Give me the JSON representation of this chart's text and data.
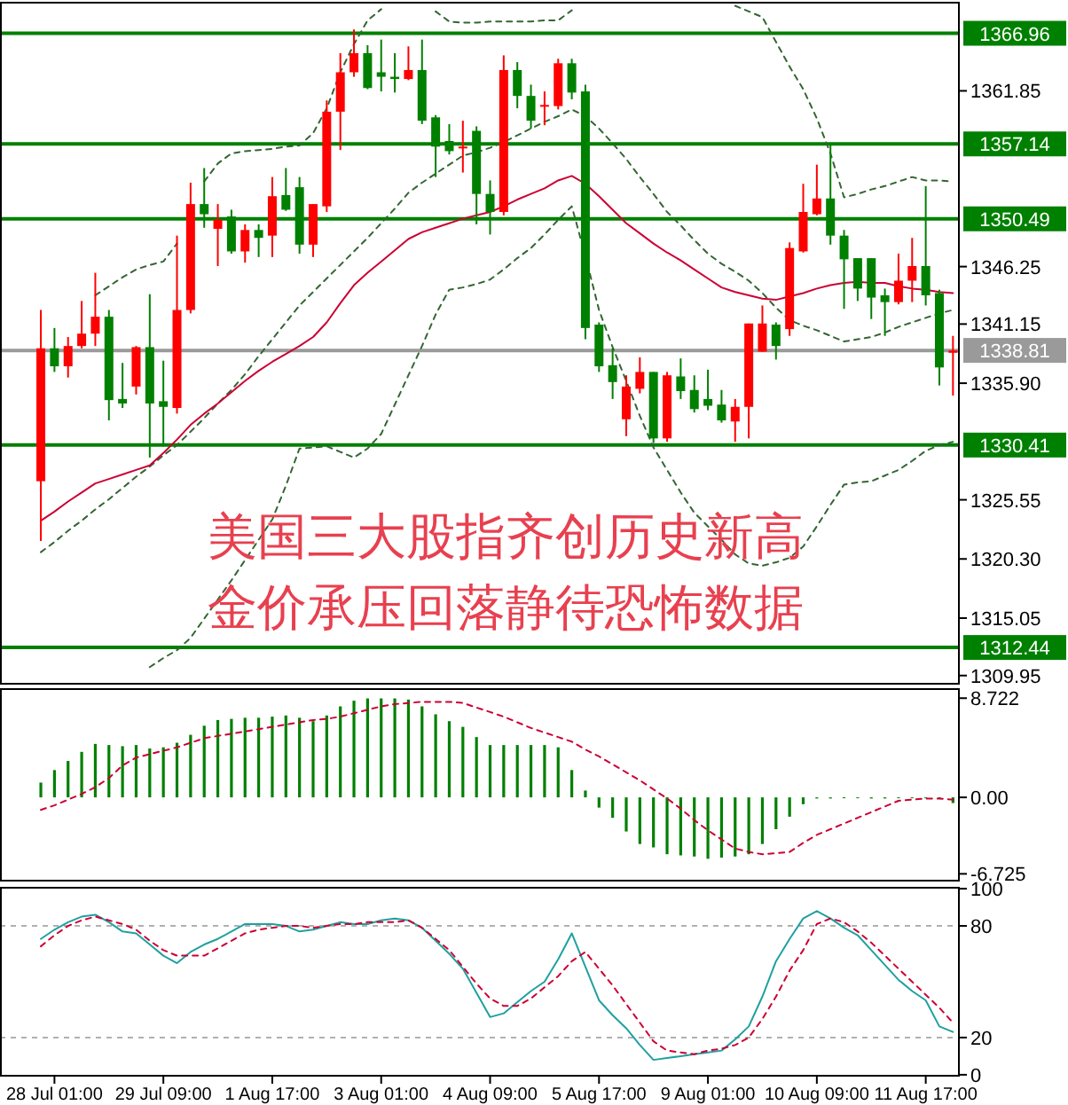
{
  "chart_data": [
    {
      "type": "candlestick",
      "tick_labels": "y",
      "categories": [
        null,
        null,
        null,
        null,
        null,
        null,
        null,
        null,
        null,
        null,
        null,
        null,
        null,
        null,
        null,
        null,
        null,
        null,
        null,
        null,
        null,
        null,
        null,
        null,
        null,
        null,
        null,
        null,
        null,
        null,
        null,
        null,
        null,
        null,
        null,
        null,
        null,
        null,
        null,
        null,
        null,
        null,
        null,
        null,
        null,
        null,
        null,
        null,
        null,
        null,
        null,
        null,
        null,
        null,
        null,
        null,
        null,
        null,
        null,
        null,
        null,
        null,
        null,
        null,
        null,
        null,
        null,
        null
      ],
      "ohlc": [
        [
          1327.2,
          1342.4,
          1321.9,
          1339.0
        ],
        [
          1339.0,
          1340.8,
          1336.9,
          1337.4
        ],
        [
          1337.4,
          1340.0,
          1336.4,
          1339.2
        ],
        [
          1339.2,
          1343.2,
          1339.0,
          1340.3
        ],
        [
          1340.3,
          1345.7,
          1339.2,
          1341.8
        ],
        [
          1341.8,
          1342.4,
          1332.6,
          1334.4
        ],
        [
          1334.5,
          1337.7,
          1333.7,
          1334.1
        ],
        [
          1335.6,
          1339.2,
          1334.9,
          1339.1
        ],
        [
          1339.1,
          1343.8,
          1329.3,
          1334.1
        ],
        [
          1334.3,
          1337.9,
          1330.3,
          1333.8
        ],
        [
          1333.7,
          1349.0,
          1333.2,
          1342.4
        ],
        [
          1342.4,
          1353.7,
          1342.1,
          1351.8
        ],
        [
          1351.8,
          1355.0,
          1349.7,
          1350.9
        ],
        [
          1349.6,
          1351.8,
          1346.3,
          1350.4
        ],
        [
          1350.7,
          1351.3,
          1347.4,
          1347.6
        ],
        [
          1347.6,
          1350.0,
          1346.6,
          1349.5
        ],
        [
          1349.5,
          1350.0,
          1347.1,
          1348.8
        ],
        [
          1349.0,
          1354.2,
          1347.1,
          1352.5
        ],
        [
          1352.6,
          1355.0,
          1351.2,
          1351.3
        ],
        [
          1353.3,
          1354.2,
          1347.4,
          1348.2
        ],
        [
          1348.2,
          1351.8,
          1347.1,
          1351.8
        ],
        [
          1351.6,
          1361.0,
          1351.1,
          1360.0
        ],
        [
          1360.0,
          1365.2,
          1356.6,
          1363.5
        ],
        [
          1363.5,
          1367.3,
          1363.1,
          1365.2
        ],
        [
          1365.2,
          1365.9,
          1362.0,
          1362.1
        ],
        [
          1363.5,
          1366.4,
          1361.8,
          1363.1
        ],
        [
          1363.1,
          1365.2,
          1361.7,
          1362.9
        ],
        [
          1362.9,
          1365.8,
          1362.8,
          1363.7
        ],
        [
          1363.7,
          1366.4,
          1358.9,
          1359.2
        ],
        [
          1359.5,
          1359.7,
          1354.2,
          1356.9
        ],
        [
          1357.4,
          1358.9,
          1356.2,
          1356.5
        ],
        [
          1356.8,
          1359.2,
          1354.6,
          1356.9
        ],
        [
          1358.3,
          1358.7,
          1350.0,
          1352.7
        ],
        [
          1352.7,
          1353.9,
          1349.1,
          1351.1
        ],
        [
          1351.1,
          1365.0,
          1350.8,
          1363.7
        ],
        [
          1363.7,
          1364.4,
          1360.3,
          1361.4
        ],
        [
          1361.4,
          1362.4,
          1358.5,
          1359.2
        ],
        [
          1360.5,
          1361.8,
          1358.8,
          1360.6
        ],
        [
          1360.5,
          1364.7,
          1360.2,
          1364.3
        ],
        [
          1364.3,
          1364.7,
          1361.1,
          1361.7
        ],
        [
          1361.8,
          1362.4,
          1339.8,
          1340.8
        ],
        [
          1341.1,
          1341.3,
          1336.9,
          1337.4
        ],
        [
          1337.5,
          1339.0,
          1334.5,
          1336.0
        ],
        [
          1332.7,
          1336.6,
          1331.2,
          1335.6
        ],
        [
          1335.4,
          1338.2,
          1335.0,
          1336.9
        ],
        [
          1336.9,
          1336.9,
          1330.6,
          1331.0
        ],
        [
          1331.0,
          1336.9,
          1330.7,
          1336.6
        ],
        [
          1336.5,
          1338.1,
          1334.5,
          1335.2
        ],
        [
          1335.3,
          1336.6,
          1333.3,
          1333.6
        ],
        [
          1334.5,
          1337.1,
          1333.5,
          1333.9
        ],
        [
          1334.0,
          1335.3,
          1332.4,
          1332.6
        ],
        [
          1332.5,
          1334.5,
          1330.7,
          1333.8
        ],
        [
          1333.8,
          1341.2,
          1331.0,
          1341.2
        ],
        [
          1338.7,
          1342.8,
          1338.7,
          1341.2
        ],
        [
          1341.1,
          1341.3,
          1338.0,
          1339.2
        ],
        [
          1340.7,
          1348.4,
          1340.1,
          1347.9
        ],
        [
          1347.6,
          1353.6,
          1347.5,
          1351.1
        ],
        [
          1350.9,
          1355.3,
          1350.8,
          1352.3
        ],
        [
          1352.3,
          1357.1,
          1348.2,
          1349.0
        ],
        [
          1349.0,
          1349.5,
          1342.5,
          1346.9
        ],
        [
          1347.0,
          1347.0,
          1343.2,
          1344.3
        ],
        [
          1347.0,
          1347.0,
          1341.6,
          1343.5
        ],
        [
          1343.7,
          1344.3,
          1340.1,
          1343.1
        ],
        [
          1343.1,
          1347.4,
          1342.9,
          1345.0
        ],
        [
          1345.0,
          1348.8,
          1343.1,
          1346.3
        ],
        [
          1346.3,
          1353.4,
          1342.8,
          1343.7
        ],
        [
          1343.9,
          1344.2,
          1335.7,
          1337.3
        ],
        [
          1338.6,
          1340.1,
          1334.8,
          1338.8
        ]
      ],
      "colors": [
        "#ff0000",
        "#008000",
        "#ff0000",
        "#ff0000",
        "#ff0000",
        "#008000",
        "#008000",
        "#ff0000",
        "#008000",
        "#008000",
        "#ff0000",
        "#ff0000",
        "#008000",
        "#ff0000",
        "#008000",
        "#ff0000",
        "#008000",
        "#ff0000",
        "#008000",
        "#008000",
        "#ff0000",
        "#ff0000",
        "#ff0000",
        "#ff0000",
        "#008000",
        "#008000",
        "#008000",
        "#ff0000",
        "#008000",
        "#008000",
        "#008000",
        "#ff0000",
        "#008000",
        "#008000",
        "#ff0000",
        "#008000",
        "#008000",
        "#ff0000",
        "#ff0000",
        "#008000",
        "#008000",
        "#008000",
        "#008000",
        "#ff0000",
        "#ff0000",
        "#008000",
        "#ff0000",
        "#008000",
        "#008000",
        "#008000",
        "#008000",
        "#ff0000",
        "#ff0000",
        "#ff0000",
        "#008000",
        "#ff0000",
        "#ff0000",
        "#ff0000",
        "#008000",
        "#008000",
        "#008000",
        "#008000",
        "#008000",
        "#ff0000",
        "#ff0000",
        "#008000",
        "#008000",
        "#ff0000"
      ],
      "series": [
        {
          "type": "line",
          "color": "#336633",
          "line_style": "dashed",
          "values": [
            null,
            null,
            null,
            null,
            1343.7,
            1344.5,
            1345.3,
            1346.0,
            1346.4,
            1346.7,
            1348.3,
            null,
            1353.8,
            1355.4,
            1356.3,
            1356.5,
            1356.6,
            1356.7,
            1356.9,
            1357.0,
            1358.1,
            1360.3,
            1363.5,
            1366.0,
            1368.1,
            1369.1,
            null,
            null,
            null,
            1368.9,
            1368.0,
            1367.9,
            1367.9,
            1368.0,
            1368.0,
            1368.0,
            1368.0,
            1368.1,
            1368.1,
            1369.0,
            null,
            null,
            null,
            null,
            null,
            null,
            null,
            null,
            null,
            null,
            null,
            1369.4,
            1368.9,
            1368.4,
            1366.2,
            1364.0,
            1362.0,
            1359.4,
            1356.3,
            1352.4,
            1352.7,
            1353.1,
            1353.4,
            1353.8,
            1354.2,
            1353.9,
            1353.9,
            1353.8
          ]
        },
        {
          "type": "line",
          "color": "#336633",
          "line_style": "dashed",
          "values": [
            1320.9,
            1321.8,
            1322.8,
            1323.7,
            1324.7,
            1325.6,
            1326.6,
            1327.6,
            1328.5,
            1329.5,
            1330.4,
            1331.6,
            1332.8,
            1334.1,
            1335.3,
            1336.7,
            1338.3,
            1339.8,
            1341.3,
            1342.8,
            1344.0,
            1345.2,
            1346.4,
            1347.6,
            1348.8,
            1350.1,
            1351.4,
            1352.8,
            1353.7,
            1354.5,
            1355.3,
            1356.1,
            1356.4,
            1356.8,
            1357.3,
            1357.9,
            1358.5,
            1359.1,
            1359.6,
            1360.2,
            1359.6,
            1358.5,
            1357.2,
            1355.8,
            1354.2,
            1352.7,
            1351.1,
            1349.9,
            1348.6,
            1347.4,
            1346.5,
            1345.8,
            1345.0,
            1343.9,
            1342.6,
            1341.5,
            1341.0,
            1340.6,
            1340.1,
            1339.6,
            1339.8,
            1340.0,
            1340.4,
            1340.9,
            1341.3,
            1341.7,
            1342.1,
            1342.4
          ]
        },
        {
          "type": "line",
          "color": "#cc0033",
          "line_style": "solid",
          "values": [
            1323.7,
            1324.5,
            1325.4,
            1326.2,
            1327.0,
            1327.4,
            1327.8,
            1328.2,
            1328.6,
            1329.7,
            1330.9,
            1332.2,
            1333.2,
            1334.1,
            1335.1,
            1336.1,
            1337.0,
            1337.8,
            1338.5,
            1339.2,
            1340.0,
            1341.3,
            1343.0,
            1344.6,
            1345.7,
            1346.7,
            1347.7,
            1348.7,
            1349.3,
            1349.7,
            1350.1,
            1350.5,
            1350.8,
            1351.1,
            1351.6,
            1352.2,
            1352.7,
            1353.2,
            1353.9,
            1354.3,
            1353.6,
            1352.5,
            1351.3,
            1350.1,
            1349.2,
            1348.3,
            1347.5,
            1346.8,
            1346.0,
            1345.2,
            1344.4,
            1344.0,
            1343.7,
            1343.4,
            1343.3,
            1343.6,
            1343.9,
            1344.3,
            1344.6,
            1344.8,
            1344.9,
            1344.8,
            1344.8,
            1344.5,
            1344.3,
            1344.2,
            1344.0,
            1343.9
          ]
        },
        {
          "type": "line",
          "color": "#336633",
          "line_style": "dashed",
          "values": [
            null,
            null,
            null,
            null,
            null,
            null,
            null,
            null,
            1310.7,
            1311.5,
            1312.2,
            1313.3,
            1315.0,
            1316.7,
            1318.4,
            1320.2,
            1322.0,
            1323.8,
            1326.8,
            1330.1,
            1330.2,
            1330.3,
            1329.8,
            1329.3,
            1330.1,
            1331.4,
            1334.0,
            1336.6,
            1339.2,
            1342.0,
            1344.2,
            1344.4,
            1344.7,
            1345.1,
            1346.0,
            1347.0,
            1347.9,
            1349.1,
            1350.4,
            1351.6,
            1347.2,
            1342.4,
            1339.1,
            1336.1,
            1333.0,
            1330.2,
            1328.2,
            1326.2,
            1324.4,
            1323.2,
            1322.0,
            1320.7,
            1319.9,
            1319.7,
            1320.0,
            1320.4,
            1321.4,
            1323.2,
            1325.1,
            1326.9,
            1327.1,
            1327.2,
            1327.7,
            1328.2,
            1329.0,
            1329.9,
            1330.4,
            1330.7
          ]
        }
      ],
      "ylim": [
        1309.3,
        1369.6
      ],
      "yticks": [
        1361.85,
        1346.25,
        1341.15,
        {
          "value": 1335.9,
          "label": "1335.90"
        },
        1325.55,
        {
          "value": 1320.3,
          "label": "1320.30"
        },
        1315.05,
        1309.95
      ],
      "ref_lines": [
        {
          "axis": "y",
          "value": 1366.96,
          "label": "1366.96",
          "color": "#008000",
          "line_style": "solid"
        },
        {
          "axis": "y",
          "value": 1357.14,
          "label": "1357.14",
          "color": "#008000",
          "line_style": "solid"
        },
        {
          "axis": "y",
          "value": 1350.49,
          "label": "1350.49",
          "color": "#008000",
          "line_style": "solid"
        },
        {
          "axis": "y",
          "value": 1338.81,
          "label": "1338.81",
          "color": "#9a9a9a",
          "line_style": "solid"
        },
        {
          "axis": "y",
          "value": 1330.41,
          "label": "1330.41",
          "color": "#008000",
          "line_style": "solid"
        },
        {
          "axis": "y",
          "value": 1312.44,
          "label": "1312.44",
          "color": "#008000",
          "line_style": "solid"
        }
      ],
      "annotations": [
        "美国三大股指齐创历史新高",
        "金价承压回落静待恐怖数据"
      ]
    },
    {
      "type": "bar",
      "tick_labels": "y",
      "categories": [
        null,
        null,
        null,
        null,
        null,
        null,
        null,
        null,
        null,
        null,
        null,
        null,
        null,
        null,
        null,
        null,
        null,
        null,
        null,
        null,
        null,
        null,
        null,
        null,
        null,
        null,
        null,
        null,
        null,
        null,
        null,
        null,
        null,
        null,
        null,
        null,
        null,
        null,
        null,
        null,
        null,
        null,
        null,
        null,
        null,
        null,
        null,
        null,
        null,
        null,
        null,
        null,
        null,
        null,
        null,
        null,
        null,
        null,
        null,
        null,
        null,
        null,
        null,
        null,
        null,
        null,
        null,
        null
      ],
      "series": [
        {
          "color": "#008000",
          "values": [
            1.3,
            2.4,
            3.2,
            4.0,
            4.7,
            4.6,
            4.5,
            4.6,
            4.3,
            4.4,
            4.8,
            5.5,
            6.3,
            6.8,
            6.9,
            7.0,
            7.0,
            7.1,
            7.2,
            7.0,
            6.7,
            7.2,
            8.0,
            8.5,
            8.7,
            8.7,
            8.7,
            8.6,
            8.0,
            7.3,
            6.7,
            6.2,
            5.3,
            4.6,
            4.6,
            4.6,
            4.6,
            4.6,
            4.4,
            2.4,
            0.6,
            -0.9,
            -1.8,
            -3.0,
            -4.1,
            -4.4,
            -5.0,
            -5.1,
            -5.2,
            -5.4,
            -5.3,
            -5.2,
            -5.0,
            -4.1,
            -2.8,
            -1.7,
            -0.6,
            -0.1,
            -0.1,
            0,
            0,
            -0.1,
            -0.1,
            0,
            0,
            0,
            0,
            -0.5
          ]
        },
        {
          "type": "line",
          "color": "#cc0033",
          "line_style": "dashed",
          "values": [
            -1.1,
            -0.7,
            -0.2,
            0.3,
            0.9,
            1.7,
            2.8,
            3.5,
            3.8,
            4.1,
            4.4,
            4.8,
            5.2,
            5.4,
            5.6,
            5.8,
            6.0,
            6.2,
            6.4,
            6.6,
            6.8,
            6.9,
            7.1,
            7.4,
            7.7,
            8.0,
            8.2,
            8.3,
            8.4,
            8.4,
            8.4,
            8.3,
            7.9,
            7.5,
            7.1,
            6.6,
            6.1,
            5.7,
            5.3,
            4.9,
            4.2,
            3.6,
            2.9,
            2.2,
            1.5,
            0.7,
            -0.1,
            -1.0,
            -2.0,
            -2.9,
            -3.7,
            -4.5,
            -4.8,
            -5.0,
            -4.9,
            -4.8,
            -4.0,
            -3.3,
            -2.8,
            -2.3,
            -1.8,
            -1.3,
            -0.8,
            -0.3,
            -0.2,
            -0.1,
            -0.1,
            -0.2
          ]
        }
      ],
      "ylim": [
        -7.4,
        9.6
      ],
      "yticks": [
        8.722,
        {
          "value": 0,
          "label": "0.00"
        },
        -6.725
      ]
    },
    {
      "type": "line",
      "categories": [
        null,
        "28 Jul 01:00",
        null,
        null,
        null,
        null,
        null,
        null,
        null,
        "29 Jul 09:00",
        null,
        null,
        null,
        null,
        null,
        null,
        null,
        "1 Aug 17:00",
        null,
        null,
        null,
        null,
        null,
        null,
        null,
        "3 Aug 01:00",
        null,
        null,
        null,
        null,
        null,
        null,
        null,
        "4 Aug 09:00",
        null,
        null,
        null,
        null,
        null,
        null,
        null,
        "5 Aug 17:00",
        null,
        null,
        null,
        null,
        null,
        null,
        null,
        "9 Aug 01:00",
        null,
        null,
        null,
        null,
        null,
        null,
        null,
        "10 Aug 09:00",
        null,
        null,
        null,
        null,
        null,
        null,
        null,
        "11 Aug 17:00",
        null,
        null
      ],
      "series": [
        {
          "color": "#20a0a0",
          "line_style": "solid",
          "values": [
            73,
            78,
            82,
            85,
            86,
            82,
            77,
            76,
            70,
            64,
            60,
            66,
            70,
            73,
            77,
            81,
            81,
            81,
            80,
            77,
            78,
            80,
            82,
            81,
            81,
            83,
            84,
            83,
            79,
            72,
            65,
            57,
            44,
            31,
            33,
            39,
            45,
            50,
            62,
            76,
            58,
            40,
            32,
            25,
            16,
            8,
            9,
            10,
            11,
            12,
            13,
            19,
            26,
            42,
            61,
            73,
            84,
            88,
            84,
            79,
            75,
            67,
            59,
            51,
            45,
            40,
            26,
            23
          ]
        },
        {
          "color": "#cc0033",
          "line_style": "dashed",
          "values": [
            69,
            75,
            80,
            83,
            85,
            83,
            81,
            78,
            72,
            67,
            64,
            64,
            64,
            68,
            72,
            76,
            78,
            79,
            80,
            80,
            79,
            80,
            81,
            81,
            82,
            82,
            82,
            83,
            79,
            73,
            67,
            58,
            49,
            41,
            37,
            37,
            41,
            47,
            53,
            61,
            66,
            57,
            48,
            38,
            28,
            18,
            13,
            12,
            11,
            13,
            14,
            16,
            20,
            30,
            42,
            56,
            67,
            81,
            84,
            82,
            77,
            71,
            64,
            57,
            50,
            43,
            36,
            28
          ]
        }
      ],
      "ylim": [
        -1,
        101
      ],
      "yticks": [
        0,
        20,
        80,
        100
      ],
      "ref_lines": [
        {
          "axis": "y",
          "value": 80,
          "color": "#b0b0b0",
          "line_style": "dashed"
        },
        {
          "axis": "y",
          "value": 20,
          "color": "#b0b0b0",
          "line_style": "dashed"
        }
      ]
    }
  ]
}
